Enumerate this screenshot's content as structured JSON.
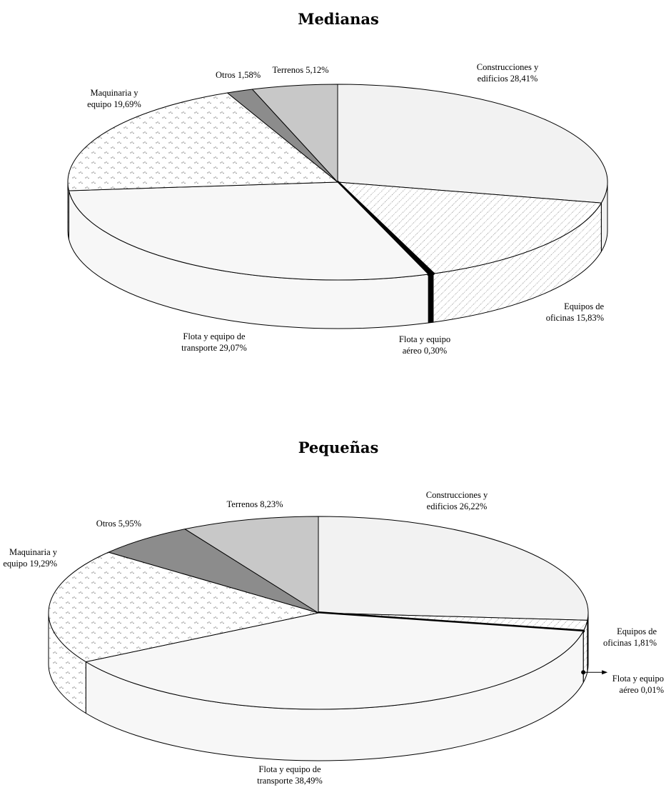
{
  "chart_data": [
    {
      "type": "pie",
      "title": "Medianas",
      "slices": [
        {
          "label_lines": [
            "Construcciones y",
            "edificios 28,41%"
          ],
          "name": "Construcciones y edificios",
          "value": 28.41,
          "fill": "#f2f2f2",
          "pattern": "none"
        },
        {
          "label_lines": [
            "Equipos de",
            "oficinas 15,83%"
          ],
          "name": "Equipos de oficinas",
          "value": 15.83,
          "fill": "#ffffff",
          "pattern": "diagonal"
        },
        {
          "label_lines": [
            "Flota y equipo",
            "aéreo 0,30%"
          ],
          "name": "Flota y equipo aéreo",
          "value": 0.3,
          "fill": "#000000",
          "pattern": "none"
        },
        {
          "label_lines": [
            "Flota y equipo de",
            "transporte 29,07%"
          ],
          "name": "Flota y equipo de transporte",
          "value": 29.07,
          "fill": "#f7f7f7",
          "pattern": "none"
        },
        {
          "label_lines": [
            "Maquinaria y",
            "equipo 19,69%"
          ],
          "name": "Maquinaria y equipo",
          "value": 19.69,
          "fill": "#ffffff",
          "pattern": "dots"
        },
        {
          "label_lines": [
            "Otros 1,58%"
          ],
          "name": "Otros",
          "value": 1.58,
          "fill": "#8c8c8c",
          "pattern": "none"
        },
        {
          "label_lines": [
            "Terrenos 5,12%"
          ],
          "name": "Terrenos",
          "value": 5.12,
          "fill": "#c8c8c8",
          "pattern": "none"
        }
      ]
    },
    {
      "type": "pie",
      "title": "Pequeñas",
      "slices": [
        {
          "label_lines": [
            "Construcciones y",
            "edificios 26,22%"
          ],
          "name": "Construcciones y edificios",
          "value": 26.22,
          "fill": "#f2f2f2",
          "pattern": "none"
        },
        {
          "label_lines": [
            "Equipos de",
            "oficinas 1,81%"
          ],
          "name": "Equipos de oficinas",
          "value": 1.81,
          "fill": "#ffffff",
          "pattern": "diagonal"
        },
        {
          "label_lines": [
            "Flota y equipo",
            "aéreo 0,01%"
          ],
          "name": "Flota y equipo aéreo",
          "value": 0.01,
          "fill": "#000000",
          "pattern": "none"
        },
        {
          "label_lines": [
            "Flota y equipo de",
            "transporte 38,49%"
          ],
          "name": "Flota y equipo de transporte",
          "value": 38.49,
          "fill": "#f7f7f7",
          "pattern": "none"
        },
        {
          "label_lines": [
            "Maquinaria y",
            "equipo 19,29%"
          ],
          "name": "Maquinaria y equipo",
          "value": 19.29,
          "fill": "#ffffff",
          "pattern": "dots"
        },
        {
          "label_lines": [
            "Otros 5,95%"
          ],
          "name": "Otros",
          "value": 5.95,
          "fill": "#8c8c8c",
          "pattern": "none"
        },
        {
          "label_lines": [
            "Terrenos 8,23%"
          ],
          "name": "Terrenos",
          "value": 8.23,
          "fill": "#c8c8c8",
          "pattern": "none"
        }
      ]
    }
  ]
}
